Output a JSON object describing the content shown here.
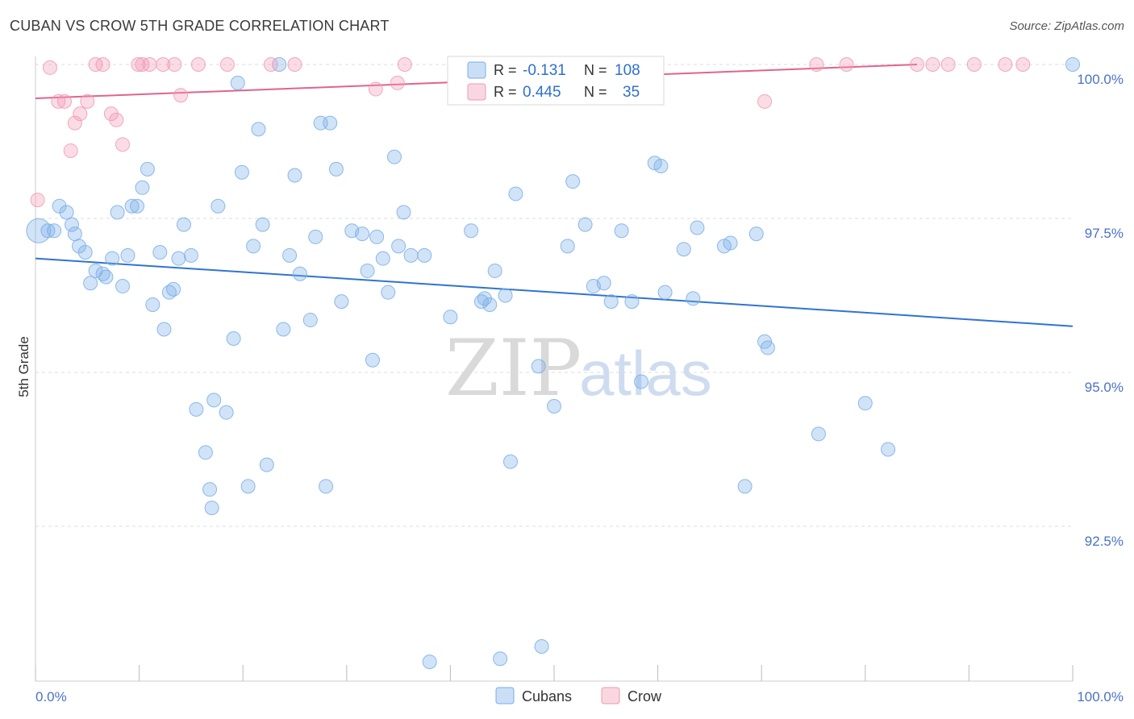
{
  "title": "CUBAN VS CROW 5TH GRADE CORRELATION CHART",
  "source": "Source: ZipAtlas.com",
  "watermark": {
    "zip": "ZIP",
    "atlas": "atlas"
  },
  "colors": {
    "cubans": "#7aaee8",
    "cubans_line": "#2f74d0",
    "crow": "#f19ab5",
    "crow_line": "#e0648c",
    "grid": "#dddddd"
  },
  "chart_data": {
    "type": "scatter",
    "title": "CUBAN VS CROW 5TH GRADE CORRELATION CHART",
    "xlabel": "",
    "ylabel": "5th Grade",
    "xlim": [
      0,
      100
    ],
    "ylim": [
      90.0,
      100.25
    ],
    "x_tick_labels": [
      "0.0%",
      "100.0%"
    ],
    "y_ticks": [
      92.5,
      95.0,
      97.5,
      100.0
    ],
    "y_tick_labels": [
      "92.5%",
      "95.0%",
      "97.5%",
      "100.0%"
    ],
    "grid": "horizontal dashed",
    "legend_position": "top-center",
    "legend": [
      {
        "label_r": "R =",
        "r": "-0.131",
        "label_n": "N =",
        "n": "108"
      },
      {
        "label_r": "R =",
        "r": "0.445",
        "label_n": "N =",
        "n": "35"
      }
    ],
    "series": [
      {
        "name": "Cubans",
        "trend": {
          "x": [
            0,
            100
          ],
          "y": [
            96.85,
            95.75
          ]
        },
        "points": [
          [
            0.3,
            97.3
          ],
          [
            1.2,
            97.3
          ],
          [
            1.8,
            97.3
          ],
          [
            2.3,
            97.7
          ],
          [
            3.0,
            97.6
          ],
          [
            3.5,
            97.4
          ],
          [
            3.8,
            97.25
          ],
          [
            4.2,
            97.05
          ],
          [
            4.8,
            96.95
          ],
          [
            5.3,
            96.45
          ],
          [
            5.8,
            96.65
          ],
          [
            6.5,
            96.6
          ],
          [
            6.8,
            96.55
          ],
          [
            7.4,
            96.85
          ],
          [
            7.9,
            97.6
          ],
          [
            8.4,
            96.4
          ],
          [
            8.9,
            96.9
          ],
          [
            9.3,
            97.7
          ],
          [
            9.8,
            97.7
          ],
          [
            10.3,
            98.0
          ],
          [
            10.8,
            98.3
          ],
          [
            11.3,
            96.1
          ],
          [
            12.0,
            96.95
          ],
          [
            12.4,
            95.7
          ],
          [
            12.9,
            96.3
          ],
          [
            13.3,
            96.35
          ],
          [
            13.8,
            96.85
          ],
          [
            14.3,
            97.4
          ],
          [
            15.0,
            96.9
          ],
          [
            15.5,
            94.4
          ],
          [
            16.4,
            93.7
          ],
          [
            16.8,
            93.1
          ],
          [
            17.0,
            92.8
          ],
          [
            17.2,
            94.55
          ],
          [
            17.6,
            97.7
          ],
          [
            18.4,
            94.35
          ],
          [
            19.1,
            95.55
          ],
          [
            19.5,
            99.7
          ],
          [
            19.9,
            98.25
          ],
          [
            20.5,
            93.15
          ],
          [
            21.0,
            97.05
          ],
          [
            21.5,
            98.95
          ],
          [
            21.9,
            97.4
          ],
          [
            22.3,
            93.5
          ],
          [
            23.5,
            100.0
          ],
          [
            23.9,
            95.7
          ],
          [
            24.5,
            96.9
          ],
          [
            25.0,
            98.2
          ],
          [
            25.5,
            96.6
          ],
          [
            26.5,
            95.85
          ],
          [
            27.0,
            97.2
          ],
          [
            27.5,
            99.05
          ],
          [
            28.0,
            93.15
          ],
          [
            28.4,
            99.05
          ],
          [
            29.0,
            98.3
          ],
          [
            29.5,
            96.15
          ],
          [
            30.5,
            97.3
          ],
          [
            31.5,
            97.25
          ],
          [
            32.0,
            96.65
          ],
          [
            32.5,
            95.2
          ],
          [
            32.9,
            97.2
          ],
          [
            33.5,
            96.85
          ],
          [
            34.0,
            96.3
          ],
          [
            34.6,
            98.5
          ],
          [
            35.0,
            97.05
          ],
          [
            35.5,
            97.6
          ],
          [
            36.2,
            96.9
          ],
          [
            37.5,
            96.9
          ],
          [
            38.0,
            90.3
          ],
          [
            40.0,
            95.9
          ],
          [
            42.0,
            97.3
          ],
          [
            43.0,
            96.15
          ],
          [
            43.3,
            96.2
          ],
          [
            43.8,
            96.1
          ],
          [
            44.3,
            96.65
          ],
          [
            44.8,
            90.35
          ],
          [
            45.3,
            96.25
          ],
          [
            45.8,
            93.55
          ],
          [
            46.3,
            97.9
          ],
          [
            48.5,
            95.1
          ],
          [
            48.8,
            90.55
          ],
          [
            50.0,
            94.45
          ],
          [
            51.3,
            97.05
          ],
          [
            51.8,
            98.1
          ],
          [
            53.0,
            97.4
          ],
          [
            53.8,
            96.4
          ],
          [
            54.8,
            96.45
          ],
          [
            55.5,
            96.15
          ],
          [
            56.5,
            97.3
          ],
          [
            57.5,
            96.15
          ],
          [
            58.4,
            94.85
          ],
          [
            59.7,
            98.4
          ],
          [
            60.3,
            98.35
          ],
          [
            60.7,
            96.3
          ],
          [
            62.5,
            97.0
          ],
          [
            63.4,
            96.2
          ],
          [
            63.8,
            97.35
          ],
          [
            66.4,
            97.05
          ],
          [
            67.0,
            97.1
          ],
          [
            68.4,
            93.15
          ],
          [
            69.5,
            97.25
          ],
          [
            70.3,
            95.5
          ],
          [
            70.6,
            95.4
          ],
          [
            75.5,
            94.0
          ],
          [
            80.0,
            94.5
          ],
          [
            82.2,
            93.75
          ],
          [
            100.0,
            100.0
          ]
        ]
      },
      {
        "name": "Crow",
        "trend": {
          "x": [
            0,
            85
          ],
          "y": [
            99.45,
            100.0
          ]
        },
        "points": [
          [
            0.2,
            97.8
          ],
          [
            1.4,
            99.95
          ],
          [
            2.2,
            99.4
          ],
          [
            2.8,
            99.4
          ],
          [
            3.4,
            98.6
          ],
          [
            3.8,
            99.05
          ],
          [
            4.3,
            99.2
          ],
          [
            5.0,
            99.4
          ],
          [
            5.8,
            100.0
          ],
          [
            6.5,
            100.0
          ],
          [
            7.3,
            99.2
          ],
          [
            7.8,
            99.1
          ],
          [
            8.4,
            98.7
          ],
          [
            9.9,
            100.0
          ],
          [
            10.3,
            100.0
          ],
          [
            11.0,
            100.0
          ],
          [
            12.3,
            100.0
          ],
          [
            13.4,
            100.0
          ],
          [
            14.0,
            99.5
          ],
          [
            15.7,
            100.0
          ],
          [
            18.5,
            100.0
          ],
          [
            22.7,
            100.0
          ],
          [
            25.0,
            100.0
          ],
          [
            32.8,
            99.6
          ],
          [
            34.9,
            99.7
          ],
          [
            35.6,
            100.0
          ],
          [
            70.3,
            99.4
          ],
          [
            75.3,
            100.0
          ],
          [
            78.2,
            100.0
          ],
          [
            85.0,
            100.0
          ],
          [
            86.5,
            100.0
          ],
          [
            88.0,
            100.0
          ],
          [
            90.5,
            100.0
          ],
          [
            93.5,
            100.0
          ],
          [
            95.2,
            100.0
          ]
        ]
      }
    ]
  },
  "bottom_legend": {
    "cubans": "Cubans",
    "crow": "Crow"
  }
}
